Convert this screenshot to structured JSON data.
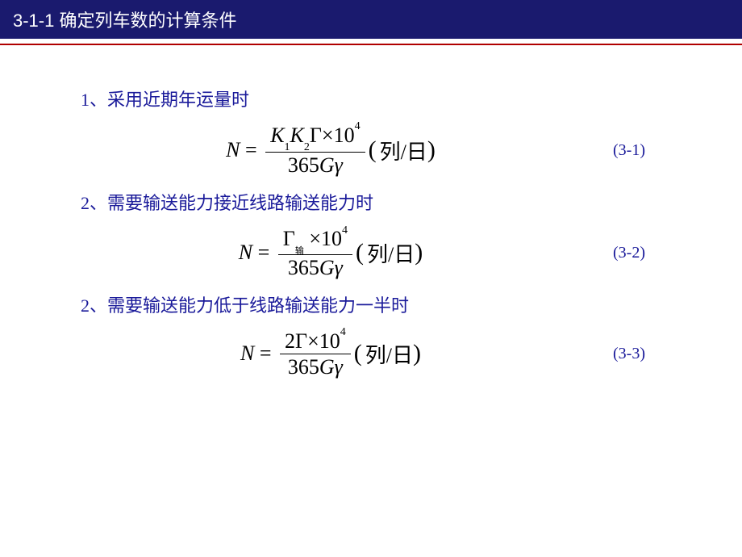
{
  "header": {
    "title": "3-1-1  确定列车数的计算条件"
  },
  "colors": {
    "header_bg": "#1a1a6e",
    "header_fg": "#ffffff",
    "accent_line": "#b00000",
    "body_bg": "#ffffff",
    "item_color": "#1a1a9a",
    "label_color": "#1a1a9a",
    "formula_color": "#000000"
  },
  "typography": {
    "header_fontsize": 22,
    "item_fontsize": 22,
    "formula_fontsize": 26,
    "label_fontsize": 20,
    "sub_fontsize": 14,
    "sup_fontsize": 14
  },
  "items": [
    {
      "text": "1、采用近期年运量时"
    },
    {
      "text": "2、需要输送能力接近线路输送能力时"
    },
    {
      "text": "2、需要输送能力低于线路输送能力一半时"
    }
  ],
  "equations": [
    {
      "label": "(3-1)",
      "lhs": "N",
      "numerator": {
        "K1": "K",
        "s1": "1",
        "K2": "K",
        "s2": "2",
        "Gamma": "Γ",
        "times": "×",
        "ten": "10",
        "exp": "4"
      },
      "denominator": {
        "c": "365",
        "G": "G",
        "gamma": "γ"
      },
      "unit_open": "(",
      "unit_text": "列/日",
      "unit_close": ")"
    },
    {
      "label": "(3-2)",
      "lhs": "N",
      "numerator": {
        "Gamma": "Γ",
        "sub": "输",
        "times": "×",
        "ten": "10",
        "exp": "4"
      },
      "denominator": {
        "c": "365",
        "G": "G",
        "gamma": "γ"
      },
      "unit_open": "(",
      "unit_text": "列/日",
      "unit_close": ")"
    },
    {
      "label": "(3-3)",
      "lhs": "N",
      "numerator": {
        "two": "2",
        "Gamma": "Γ",
        "times": "×",
        "ten": "10",
        "exp": "4"
      },
      "denominator": {
        "c": "365",
        "G": "G",
        "gamma": "γ"
      },
      "unit_open": "(",
      "unit_text": "列/日",
      "unit_close": ")"
    }
  ]
}
